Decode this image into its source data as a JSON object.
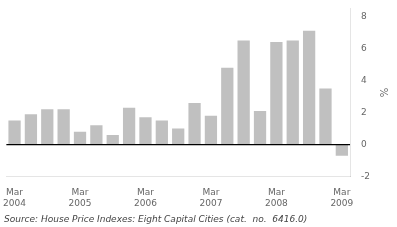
{
  "chart_data": {
    "type": "bar",
    "y_label": "%",
    "annotations": [
      "Source: House Price Indexes: Eight Capital Cities (cat.  no.  6416.0)"
    ],
    "categories": [
      "Mar\n2004",
      null,
      null,
      null,
      "Mar\n2005",
      null,
      null,
      null,
      "Mar\n2006",
      null,
      null,
      null,
      "Mar\n2007",
      null,
      null,
      null,
      "Mar\n2008",
      null,
      null,
      null,
      "Mar\n2009"
    ],
    "values": [
      1.5,
      1.9,
      2.2,
      2.2,
      0.8,
      1.2,
      0.6,
      2.3,
      1.7,
      1.5,
      1.0,
      2.6,
      1.8,
      4.8,
      6.5,
      2.1,
      6.4,
      6.5,
      7.1,
      3.5,
      -0.7
    ],
    "color": "#C0C0C0",
    "ylim": [
      -2,
      8.5
    ],
    "yticks": [
      -2,
      0,
      2,
      4,
      6,
      8
    ],
    "grid": false
  }
}
